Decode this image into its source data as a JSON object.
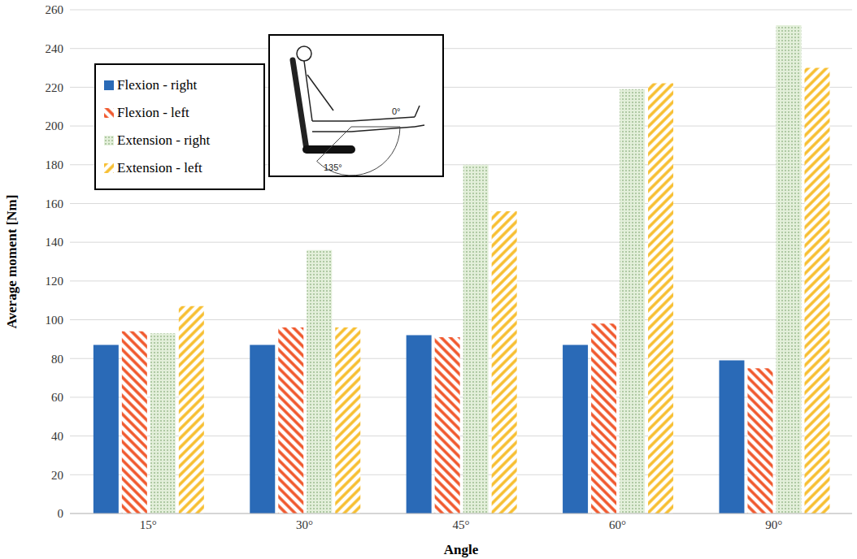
{
  "chart_data": {
    "type": "bar",
    "x_label": "Angle",
    "y_label": "Average moment [Nm]",
    "categories": [
      "15°",
      "30°",
      "45°",
      "60°",
      "90°"
    ],
    "series": [
      {
        "name": "Flexion - right",
        "color": "#2a6ab7",
        "values": [
          87,
          87,
          92,
          87,
          79
        ]
      },
      {
        "name": "Flexion - left",
        "color": "#f0562a",
        "values": [
          94,
          96,
          91,
          98,
          75
        ]
      },
      {
        "name": "Extension - right",
        "color": "#6e9a5c",
        "values": [
          93,
          136,
          180,
          219,
          252
        ]
      },
      {
        "name": "Extension - left",
        "color": "#f7be2e",
        "values": [
          107,
          96,
          156,
          222,
          230
        ]
      }
    ],
    "ylim": [
      0,
      260
    ],
    "yticks": [
      0,
      20,
      40,
      60,
      80,
      100,
      120,
      140,
      160,
      180,
      200,
      220,
      240,
      260
    ],
    "grid": true,
    "legend": "upper left",
    "annotations": [
      "0°",
      "135°"
    ]
  }
}
